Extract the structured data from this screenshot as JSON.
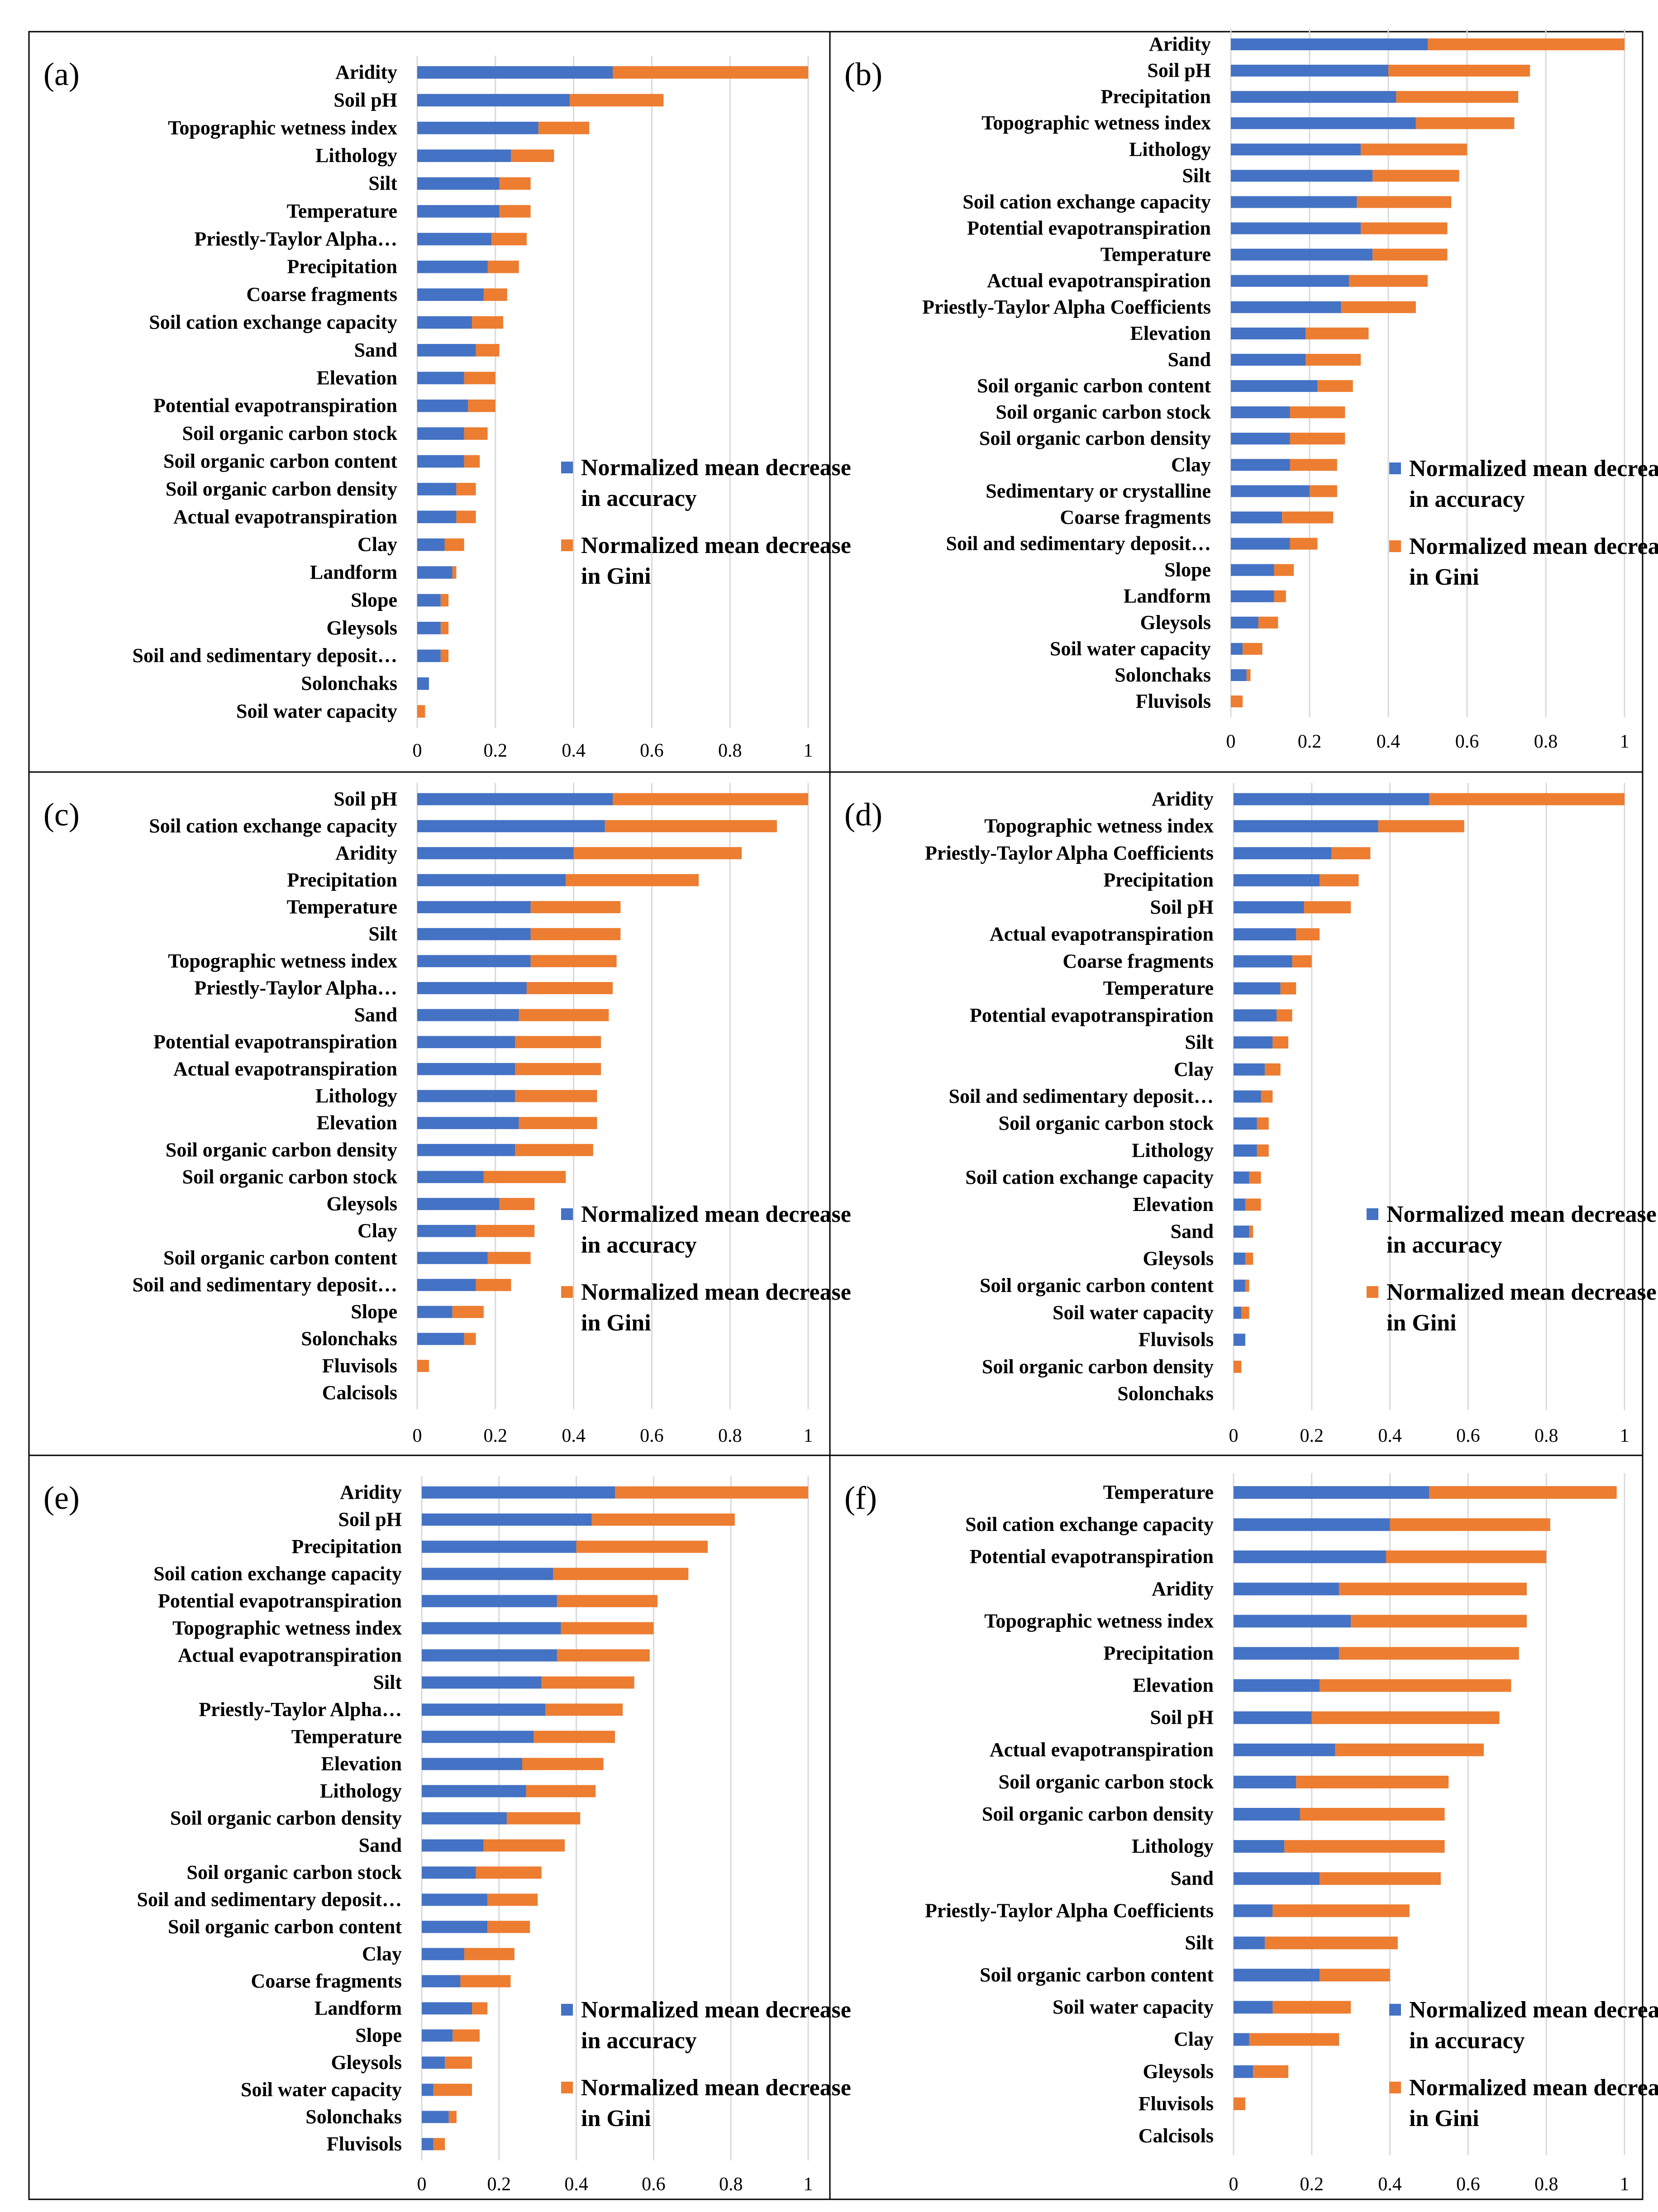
{
  "figure": {
    "legend": {
      "accuracy": "Normalized mean decrease in accuracy",
      "gini": "Normalized mean decrease in Gini"
    },
    "colors": {
      "accuracy": "#4472C4",
      "gini": "#ED7D31",
      "grid": "#D9D9D9",
      "border": "#000000"
    }
  },
  "chart_data": [
    {
      "type": "bar",
      "panel": "(a)",
      "title": "",
      "orientation": "horizontal-stacked",
      "xlim": [
        0,
        1
      ],
      "xticks": [
        "0",
        "0.2",
        "0.4",
        "0.6",
        "0.8",
        "1"
      ],
      "categories": [
        "Aridity",
        "Soil pH",
        "Topographic wetness index",
        "Lithology",
        "Silt",
        "Temperature",
        "Priestly-Taylor Alpha…",
        "Precipitation",
        "Coarse fragments",
        "Soil cation exchange capacity",
        "Sand",
        "Elevation",
        "Potential evapotranspiration",
        "Soil organic carbon stock",
        "Soil organic carbon content",
        "Soil organic carbon density",
        "Actual evapotranspiration",
        "Clay",
        "Landform",
        "Slope",
        "Gleysols",
        "Soil and sedimentary deposit…",
        "Solonchaks",
        "Soil water capacity"
      ],
      "series": [
        {
          "name": "Normalized mean decrease in accuracy",
          "values": [
            0.5,
            0.39,
            0.31,
            0.24,
            0.21,
            0.21,
            0.19,
            0.18,
            0.17,
            0.14,
            0.15,
            0.12,
            0.13,
            0.12,
            0.12,
            0.1,
            0.1,
            0.07,
            0.09,
            0.06,
            0.06,
            0.06,
            0.03,
            0.0
          ]
        },
        {
          "name": "Normalized mean decrease in Gini",
          "values": [
            0.5,
            0.24,
            0.13,
            0.11,
            0.08,
            0.08,
            0.09,
            0.08,
            0.06,
            0.08,
            0.06,
            0.08,
            0.07,
            0.06,
            0.04,
            0.05,
            0.05,
            0.05,
            0.01,
            0.02,
            0.02,
            0.02,
            0.0,
            0.02
          ]
        }
      ]
    },
    {
      "type": "bar",
      "panel": "(b)",
      "title": "",
      "orientation": "horizontal-stacked",
      "xlim": [
        0,
        1
      ],
      "xticks": [
        "0",
        "0.2",
        "0.4",
        "0.6",
        "0.8",
        "1"
      ],
      "categories": [
        "Aridity",
        "Soil pH",
        "Precipitation",
        "Topographic wetness index",
        "Lithology",
        "Silt",
        "Soil cation exchange capacity",
        "Potential evapotranspiration",
        "Temperature",
        "Actual evapotranspiration",
        "Priestly-Taylor Alpha Coefficients",
        "Elevation",
        "Sand",
        "Soil organic carbon content",
        "Soil organic carbon stock",
        "Soil organic carbon density",
        "Clay",
        "Sedimentary or crystalline",
        "Coarse fragments",
        "Soil and sedimentary deposit…",
        "Slope",
        "Landform",
        "Gleysols",
        "Soil water capacity",
        "Solonchaks",
        "Fluvisols"
      ],
      "series": [
        {
          "name": "Normalized mean decrease in accuracy",
          "values": [
            0.5,
            0.4,
            0.42,
            0.47,
            0.33,
            0.36,
            0.32,
            0.33,
            0.36,
            0.3,
            0.28,
            0.19,
            0.19,
            0.22,
            0.15,
            0.15,
            0.15,
            0.2,
            0.13,
            0.15,
            0.11,
            0.11,
            0.07,
            0.03,
            0.04,
            0.0
          ]
        },
        {
          "name": "Normalized mean decrease in Gini",
          "values": [
            0.5,
            0.36,
            0.31,
            0.25,
            0.27,
            0.22,
            0.24,
            0.22,
            0.19,
            0.2,
            0.19,
            0.16,
            0.14,
            0.09,
            0.14,
            0.14,
            0.12,
            0.07,
            0.13,
            0.07,
            0.05,
            0.03,
            0.05,
            0.05,
            0.01,
            0.03
          ]
        }
      ]
    },
    {
      "type": "bar",
      "panel": "(c)",
      "title": "",
      "orientation": "horizontal-stacked",
      "xlim": [
        0,
        1
      ],
      "xticks": [
        "0",
        "0.2",
        "0.4",
        "0.6",
        "0.8",
        "1"
      ],
      "categories": [
        "Soil pH",
        "Soil cation exchange capacity",
        "Aridity",
        "Precipitation",
        "Temperature",
        "Silt",
        "Topographic wetness index",
        "Priestly-Taylor Alpha…",
        "Sand",
        "Potential evapotranspiration",
        "Actual evapotranspiration",
        "Lithology",
        "Elevation",
        "Soil organic carbon density",
        "Soil organic carbon stock",
        "Gleysols",
        "Clay",
        "Soil organic carbon content",
        "Soil and sedimentary deposit…",
        "Slope",
        "Solonchaks",
        "Fluvisols",
        "Calcisols"
      ],
      "series": [
        {
          "name": "Normalized mean decrease in accuracy",
          "values": [
            0.5,
            0.48,
            0.4,
            0.38,
            0.29,
            0.29,
            0.29,
            0.28,
            0.26,
            0.25,
            0.25,
            0.25,
            0.26,
            0.25,
            0.17,
            0.21,
            0.15,
            0.18,
            0.15,
            0.09,
            0.12,
            0.0,
            0.0
          ]
        },
        {
          "name": "Normalized mean decrease in Gini",
          "values": [
            0.5,
            0.44,
            0.43,
            0.34,
            0.23,
            0.23,
            0.22,
            0.22,
            0.23,
            0.22,
            0.22,
            0.21,
            0.2,
            0.2,
            0.21,
            0.09,
            0.15,
            0.11,
            0.09,
            0.08,
            0.03,
            0.03,
            0.0
          ]
        }
      ]
    },
    {
      "type": "bar",
      "panel": "(d)",
      "title": "",
      "orientation": "horizontal-stacked",
      "xlim": [
        0,
        1
      ],
      "xticks": [
        "0",
        "0.2",
        "0.4",
        "0.6",
        "0.8",
        "1"
      ],
      "categories": [
        "Aridity",
        "Topographic wetness index",
        "Priestly-Taylor Alpha Coefficients",
        "Precipitation",
        "Soil pH",
        "Actual evapotranspiration",
        "Coarse fragments",
        "Temperature",
        "Potential evapotranspiration",
        "Silt",
        "Clay",
        "Soil and sedimentary deposit…",
        "Soil organic carbon stock",
        "Lithology",
        "Soil cation exchange capacity",
        "Elevation",
        "Sand",
        "Gleysols",
        "Soil organic carbon content",
        "Soil water capacity",
        "Fluvisols",
        "Soil organic carbon density",
        "Solonchaks"
      ],
      "series": [
        {
          "name": "Normalized mean decrease in accuracy",
          "values": [
            0.5,
            0.37,
            0.25,
            0.22,
            0.18,
            0.16,
            0.15,
            0.12,
            0.11,
            0.1,
            0.08,
            0.07,
            0.06,
            0.06,
            0.04,
            0.03,
            0.04,
            0.03,
            0.03,
            0.02,
            0.03,
            0.0,
            0.0
          ]
        },
        {
          "name": "Normalized mean decrease in Gini",
          "values": [
            0.5,
            0.22,
            0.1,
            0.1,
            0.12,
            0.06,
            0.05,
            0.04,
            0.04,
            0.04,
            0.04,
            0.03,
            0.03,
            0.03,
            0.03,
            0.04,
            0.01,
            0.02,
            0.01,
            0.02,
            0.0,
            0.02,
            0.0
          ]
        }
      ]
    },
    {
      "type": "bar",
      "panel": "(e)",
      "title": "",
      "orientation": "horizontal-stacked",
      "xlim": [
        0,
        1
      ],
      "xticks": [
        "0",
        "0.2",
        "0.4",
        "0.6",
        "0.8",
        "1"
      ],
      "categories": [
        "Aridity",
        "Soil pH",
        "Precipitation",
        "Soil cation exchange capacity",
        "Potential evapotranspiration",
        "Topographic wetness index",
        "Actual evapotranspiration",
        "Silt",
        "Priestly-Taylor Alpha…",
        "Temperature",
        "Elevation",
        "Lithology",
        "Soil organic carbon density",
        "Sand",
        "Soil organic carbon stock",
        "Soil and sedimentary deposit…",
        "Soil organic carbon content",
        "Clay",
        "Coarse fragments",
        "Landform",
        "Slope",
        "Gleysols",
        "Soil water capacity",
        "Solonchaks",
        "Fluvisols"
      ],
      "series": [
        {
          "name": "Normalized mean decrease in accuracy",
          "values": [
            0.5,
            0.44,
            0.4,
            0.34,
            0.35,
            0.36,
            0.35,
            0.31,
            0.32,
            0.29,
            0.26,
            0.27,
            0.22,
            0.16,
            0.14,
            0.17,
            0.17,
            0.11,
            0.1,
            0.13,
            0.08,
            0.06,
            0.03,
            0.07,
            0.03
          ]
        },
        {
          "name": "Normalized mean decrease in Gini",
          "values": [
            0.5,
            0.37,
            0.34,
            0.35,
            0.26,
            0.24,
            0.24,
            0.24,
            0.2,
            0.21,
            0.21,
            0.18,
            0.19,
            0.21,
            0.17,
            0.13,
            0.11,
            0.13,
            0.13,
            0.04,
            0.07,
            0.07,
            0.1,
            0.02,
            0.03
          ]
        }
      ]
    },
    {
      "type": "bar",
      "panel": "(f)",
      "title": "",
      "orientation": "horizontal-stacked",
      "xlim": [
        0,
        1
      ],
      "xticks": [
        "0",
        "0.2",
        "0.4",
        "0.6",
        "0.8",
        "1"
      ],
      "categories": [
        "Temperature",
        "Soil cation exchange capacity",
        "Potential evapotranspiration",
        "Aridity",
        "Topographic wetness index",
        "Precipitation",
        "Elevation",
        "Soil pH",
        "Actual evapotranspiration",
        "Soil organic carbon stock",
        "Soil organic carbon density",
        "Lithology",
        "Sand",
        "Priestly-Taylor Alpha Coefficients",
        "Silt",
        "Soil organic carbon content",
        "Soil water capacity",
        "Clay",
        "Gleysols",
        "Fluvisols",
        "Calcisols"
      ],
      "series": [
        {
          "name": "Normalized mean decrease in accuracy",
          "values": [
            0.5,
            0.4,
            0.39,
            0.27,
            0.3,
            0.27,
            0.22,
            0.2,
            0.26,
            0.16,
            0.17,
            0.13,
            0.22,
            0.1,
            0.08,
            0.22,
            0.1,
            0.04,
            0.05,
            0.0,
            0.0
          ]
        },
        {
          "name": "Normalized mean decrease in Gini",
          "values": [
            0.48,
            0.41,
            0.41,
            0.48,
            0.45,
            0.46,
            0.49,
            0.48,
            0.38,
            0.39,
            0.37,
            0.41,
            0.31,
            0.35,
            0.34,
            0.18,
            0.2,
            0.23,
            0.09,
            0.03,
            0.0
          ]
        }
      ]
    }
  ]
}
